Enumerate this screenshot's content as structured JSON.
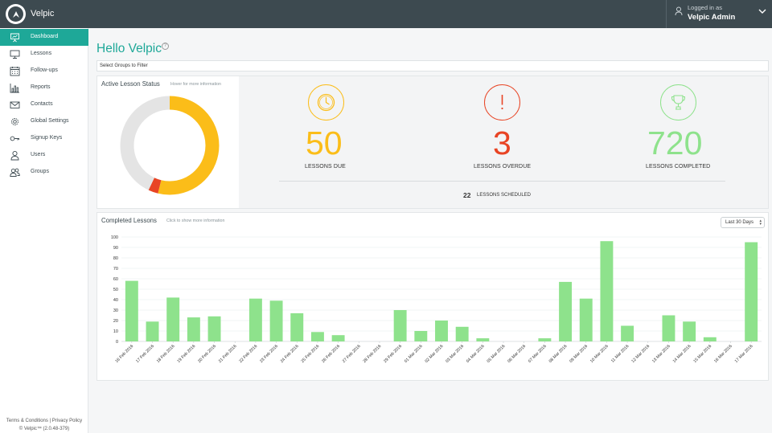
{
  "app": {
    "brand": "Velpic"
  },
  "user": {
    "logged_label": "Logged in as",
    "name": "Velpic Admin"
  },
  "sidebar": {
    "items": [
      {
        "label": "Dashboard",
        "icon": "presentation-icon",
        "active": true
      },
      {
        "label": "Lessons",
        "icon": "monitor-icon"
      },
      {
        "label": "Follow-ups",
        "icon": "calendar-icon"
      },
      {
        "label": "Reports",
        "icon": "bar-chart-icon"
      },
      {
        "label": "Contacts",
        "icon": "envelope-icon"
      },
      {
        "label": "Global Settings",
        "icon": "gear-icon"
      },
      {
        "label": "Signup Keys",
        "icon": "key-icon"
      },
      {
        "label": "Users",
        "icon": "user-icon"
      },
      {
        "label": "Groups",
        "icon": "users-icon"
      }
    ],
    "footer": {
      "terms": "Terms & Conditions",
      "separator": "|",
      "privacy": "Privacy Policy",
      "version": "© Velpic™ (2.0.48-379)"
    }
  },
  "main": {
    "title": "Hello Velpic",
    "help_icon": "question-icon",
    "group_filter_placeholder": "Select Groups to Filter"
  },
  "lesson_status": {
    "title": "Active Lesson Status",
    "hint": "Hover for more information",
    "colors": {
      "due": "#fbbd19",
      "overdue": "#e84424",
      "completed": "#8ee28c",
      "remaining": "#e4e4e4"
    },
    "donut": {
      "due": 50,
      "overdue": 3,
      "other": 40
    },
    "metrics": [
      {
        "value": "50",
        "label": "LESSONS DUE",
        "icon": "clock-icon",
        "color": "#fbbd19"
      },
      {
        "value": "3",
        "label": "LESSONS OVERDUE",
        "icon": "exclamation-icon",
        "color": "#e84424"
      },
      {
        "value": "720",
        "label": "LESSONS COMPLETED",
        "icon": "trophy-icon",
        "color": "#8ee28c"
      }
    ],
    "scheduled": {
      "value": "22",
      "label": "LESSONS SCHEDULED"
    }
  },
  "completed_lessons": {
    "title": "Completed Lessons",
    "hint": "Click to show more information",
    "range": {
      "selected": "Last 30 Days"
    }
  },
  "chart_data": {
    "type": "bar",
    "title": "Completed Lessons",
    "xlabel": "",
    "ylabel": "",
    "ylim": [
      0,
      100
    ],
    "yticks": [
      0,
      10,
      20,
      30,
      40,
      50,
      60,
      70,
      80,
      90,
      100
    ],
    "grid": true,
    "color": "#8ee28c",
    "categories": [
      "16 Feb 2016",
      "17 Feb 2016",
      "18 Feb 2016",
      "19 Feb 2016",
      "20 Feb 2016",
      "21 Feb 2016",
      "22 Feb 2016",
      "23 Feb 2016",
      "24 Feb 2016",
      "25 Feb 2016",
      "26 Feb 2016",
      "27 Feb 2016",
      "28 Feb 2016",
      "29 Feb 2016",
      "01 Mar 2016",
      "02 Mar 2016",
      "03 Mar 2016",
      "04 Mar 2016",
      "05 Mar 2016",
      "06 Mar 2016",
      "07 Mar 2016",
      "08 Mar 2016",
      "09 Mar 2016",
      "10 Mar 2016",
      "11 Mar 2016",
      "12 Mar 2016",
      "13 Mar 2016",
      "14 Mar 2016",
      "15 Mar 2016",
      "16 Mar 2016",
      "17 Mar 2016"
    ],
    "values": [
      58,
      19,
      42,
      23,
      24,
      0,
      41,
      39,
      27,
      9,
      6,
      0,
      0,
      30,
      10,
      20,
      14,
      3,
      0,
      0,
      3,
      57,
      41,
      96,
      15,
      0,
      25,
      19,
      4,
      0,
      95
    ]
  }
}
